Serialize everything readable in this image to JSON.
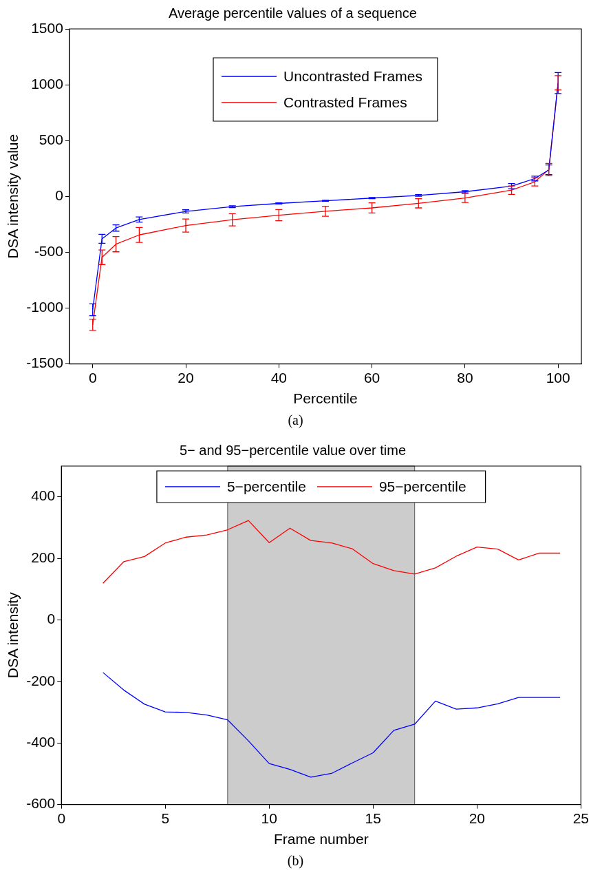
{
  "chart_data": [
    {
      "type": "line",
      "title": "Average percentile values of a sequence",
      "xlabel": "Percentile",
      "ylabel": "DSA intensity value",
      "x": [
        0,
        2,
        5,
        10,
        20,
        30,
        40,
        50,
        60,
        70,
        80,
        90,
        95,
        98,
        100
      ],
      "series": [
        {
          "name": "Uncontrasted Frames",
          "color": "#0000ff",
          "values": [
            -1015,
            -380,
            -283,
            -207,
            -134,
            -92,
            -63,
            -39,
            -15,
            9,
            42,
            92,
            160,
            238,
            1015
          ],
          "errors": [
            53,
            40,
            28,
            23,
            14,
            8,
            5,
            5,
            5,
            8,
            10,
            23,
            21,
            43,
            94
          ]
        },
        {
          "name": "Contrasted Frames",
          "color": "#ff0000",
          "values": [
            -1150,
            -545,
            -428,
            -345,
            -261,
            -209,
            -168,
            -133,
            -103,
            -62,
            -14,
            56,
            131,
            240,
            1018
          ],
          "errors": [
            50,
            65,
            68,
            67,
            59,
            55,
            50,
            45,
            45,
            41,
            40,
            38,
            38,
            56,
            64
          ]
        }
      ],
      "xlim": [
        -5,
        105
      ],
      "xticks": [
        0,
        20,
        40,
        60,
        80,
        100
      ],
      "ylim": [
        -1500,
        1500
      ],
      "yticks": [
        -1500,
        -1000,
        -500,
        0,
        500,
        1000,
        1500
      ],
      "grid": false,
      "legend": "top",
      "annotations": [
        "(a)"
      ]
    },
    {
      "type": "line",
      "title": "5− and 95−percentile value over time",
      "xlabel": "Frame number",
      "ylabel": "DSA intensity",
      "x": [
        2,
        3,
        4,
        5,
        6,
        7,
        8,
        9,
        10,
        11,
        12,
        13,
        14,
        15,
        16,
        17,
        18,
        19,
        20,
        21,
        22,
        23,
        24
      ],
      "series": [
        {
          "name": "5−percentile",
          "color": "#0000ff",
          "values": [
            -171,
            -228,
            -274,
            -299,
            -301,
            -309,
            -325,
            -393,
            -467,
            -486,
            -511,
            -499,
            -465,
            -432,
            -359,
            -339,
            -264,
            -290,
            -286,
            -273,
            -252,
            -252,
            -252
          ]
        },
        {
          "name": "95−percentile",
          "color": "#ff0000",
          "values": [
            119,
            189,
            206,
            250,
            269,
            276,
            293,
            323,
            251,
            298,
            258,
            250,
            231,
            183,
            160,
            149,
            169,
            207,
            237,
            230,
            195,
            217,
            217
          ]
        }
      ],
      "bands": [
        {
          "axis": "x",
          "from": 8,
          "to": 17,
          "color": "#cccccc"
        }
      ],
      "xlim": [
        0,
        25
      ],
      "xticks": [
        0,
        5,
        10,
        15,
        20,
        25
      ],
      "ylim": [
        -600,
        500
      ],
      "yticks": [
        -600,
        -400,
        -200,
        0,
        200,
        400
      ],
      "grid": false,
      "legend": "top",
      "annotations": [
        "(b)"
      ]
    }
  ]
}
